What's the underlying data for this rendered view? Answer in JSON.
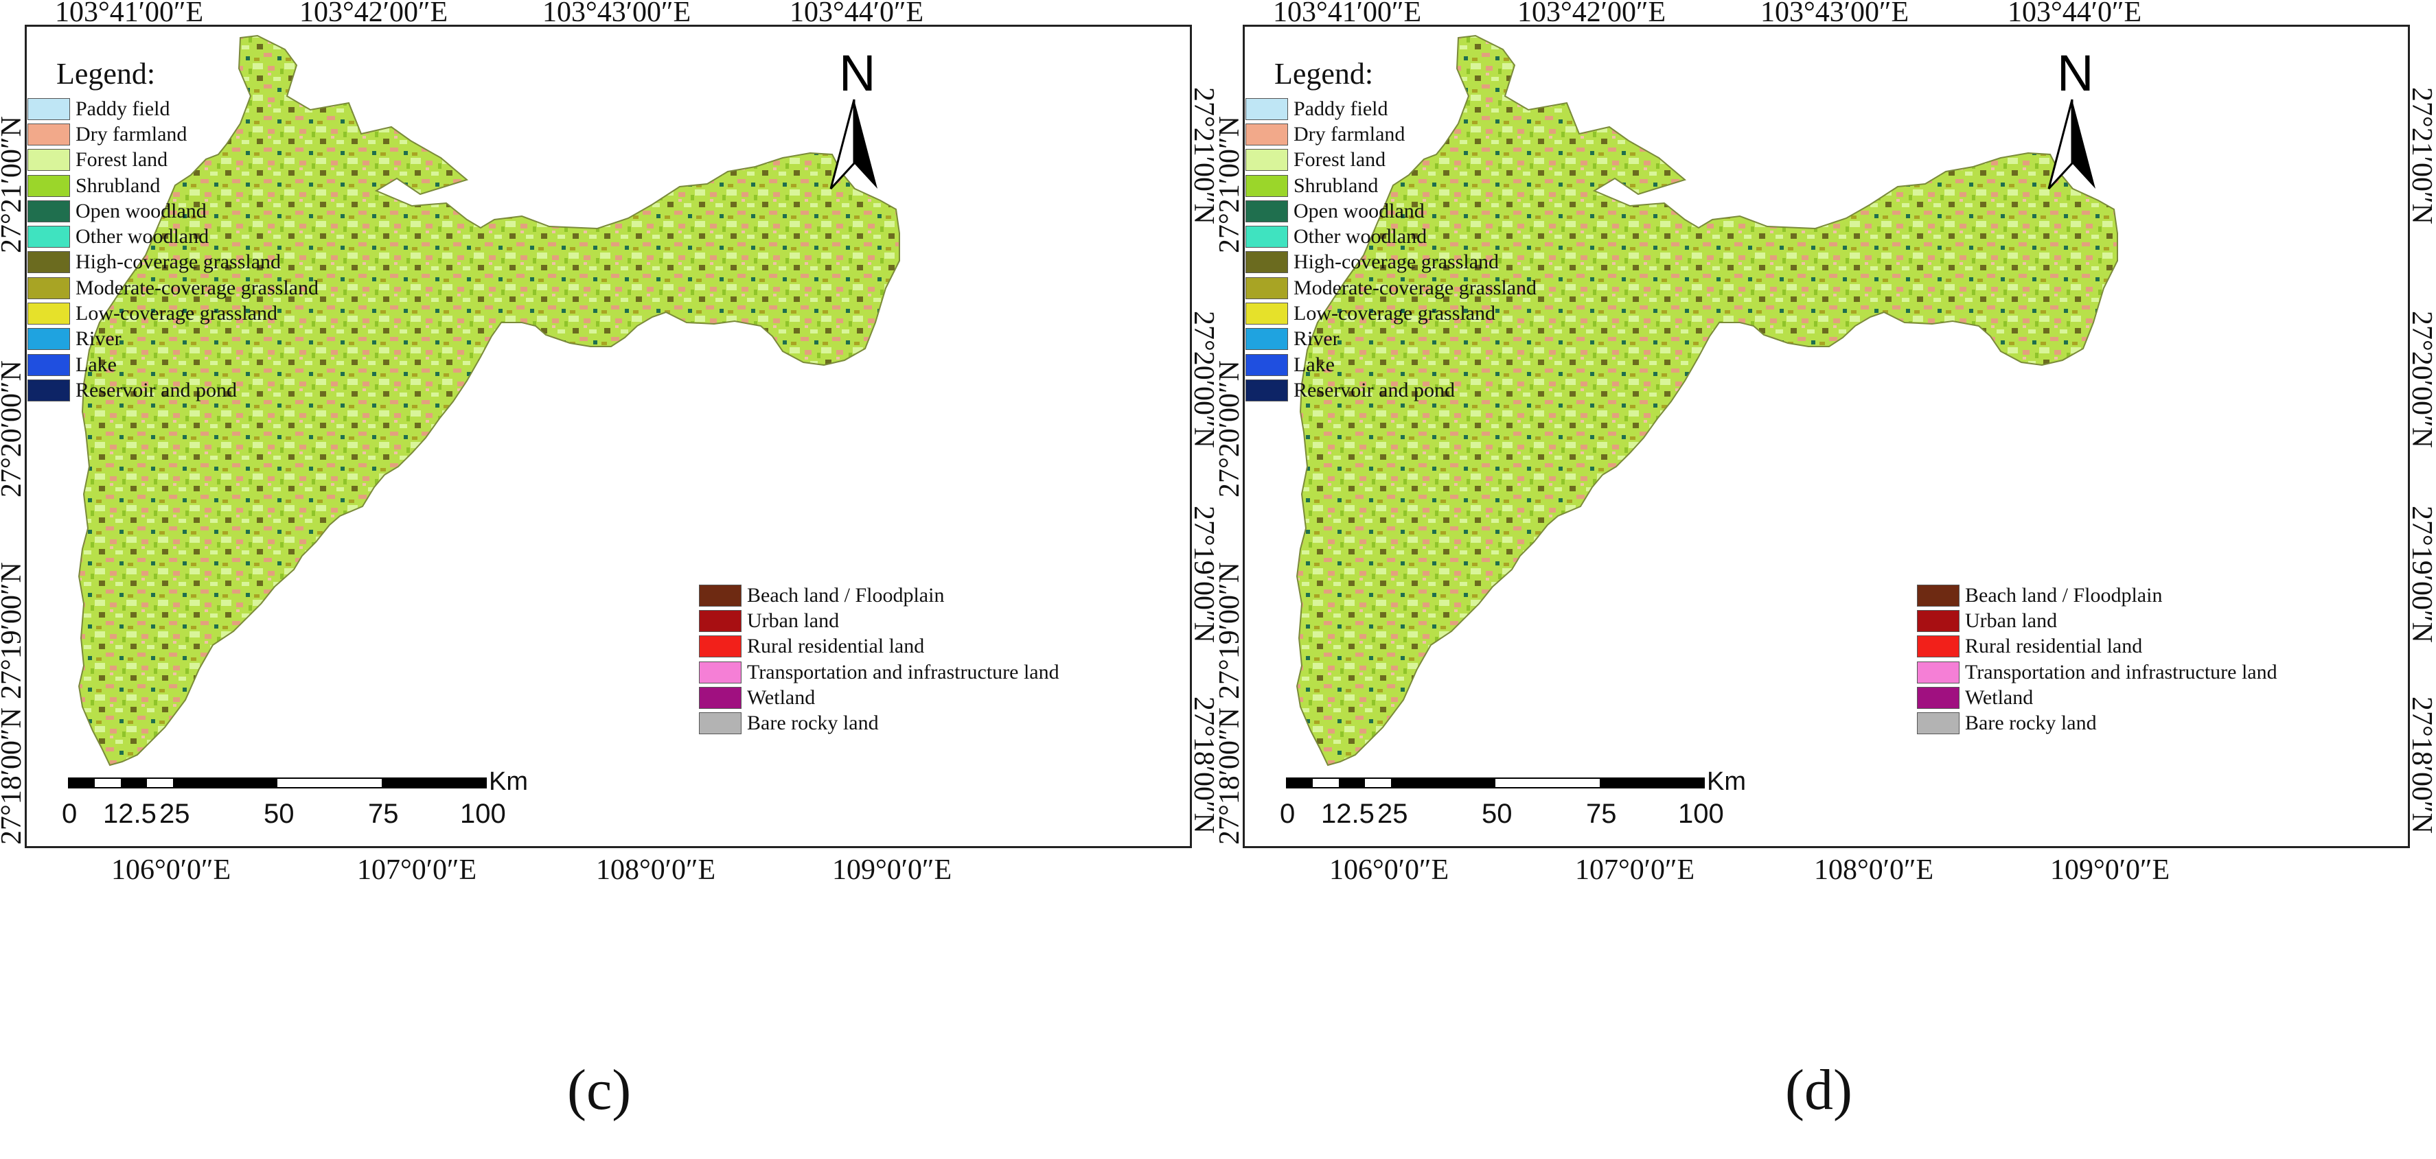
{
  "panels": [
    {
      "caption": "(c)",
      "top_ticks": [
        "103°41′00″E",
        "103°42′00″E",
        "103°43′00″E",
        "103°44′0″E"
      ],
      "bottom_ticks": [
        "106°0′0″E",
        "107°0′0″E",
        "108°0′0″E",
        "109°0′0″E"
      ],
      "left_ticks": [
        "27°21′00″N",
        "27°20′00″N",
        "27°19′00″N",
        "27°18′00″N"
      ],
      "right_ticks": [
        "27°21′00″N",
        "27°20′00″N",
        "27°19′00″N",
        "27°18′00″N"
      ],
      "legend_title": "Legend:",
      "north_label": "N",
      "scale_labels": [
        "0",
        "12.5",
        "25",
        "50",
        "75",
        "100"
      ],
      "scale_unit": "Km"
    },
    {
      "caption": "(d)",
      "top_ticks": [
        "103°41′00″E",
        "103°42′00″E",
        "103°43′00″E",
        "103°44′0″E"
      ],
      "bottom_ticks": [
        "106°0′0″E",
        "107°0′0″E",
        "108°0′0″E",
        "109°0′0″E"
      ],
      "left_ticks": [
        "27°21′00″N",
        "27°20′00″N",
        "27°19′00″N",
        "27°18′00″N"
      ],
      "right_ticks": [
        "27°21′00″N",
        "27°20′00″N",
        "27°19′00″N",
        "27°18′00″N"
      ],
      "legend_title": "Legend:",
      "north_label": "N",
      "scale_labels": [
        "0",
        "12.5",
        "25",
        "50",
        "75",
        "100"
      ],
      "scale_unit": "Km"
    }
  ],
  "legend_items": [
    {
      "label": "Paddy field",
      "color": "#bfe6f5"
    },
    {
      "label": "Dry farmland",
      "color": "#f2a98a"
    },
    {
      "label": "Forest land",
      "color": "#d9f59a"
    },
    {
      "label": "Shrubland",
      "color": "#9bd62a"
    },
    {
      "label": "Open woodland",
      "color": "#1f6f4e"
    },
    {
      "label": "Other woodland",
      "color": "#3fe3c0"
    },
    {
      "label": "High-coverage grassland",
      "color": "#6b6b1f"
    },
    {
      "label": "Moderate-coverage grassland",
      "color": "#a8a424"
    },
    {
      "label": "Low-coverage grassland",
      "color": "#e6e12a"
    },
    {
      "label": "River",
      "color": "#1fa3e0"
    },
    {
      "label": "Lake",
      "color": "#1f4fe0"
    },
    {
      "label": "Reservoir and pond",
      "color": "#0d2466"
    }
  ],
  "legend_items_2": [
    {
      "label": "Beach land / Floodplain",
      "color": "#6e2a12"
    },
    {
      "label": "Urban land",
      "color": "#a80f12"
    },
    {
      "label": "Rural residential land",
      "color": "#f2201a"
    },
    {
      "label": "Transportation and infrastructure land",
      "color": "#f57fd6"
    },
    {
      "label": "Wetland",
      "color": "#a01080"
    },
    {
      "label": "Bare rocky land",
      "color": "#b3b3b3"
    }
  ]
}
